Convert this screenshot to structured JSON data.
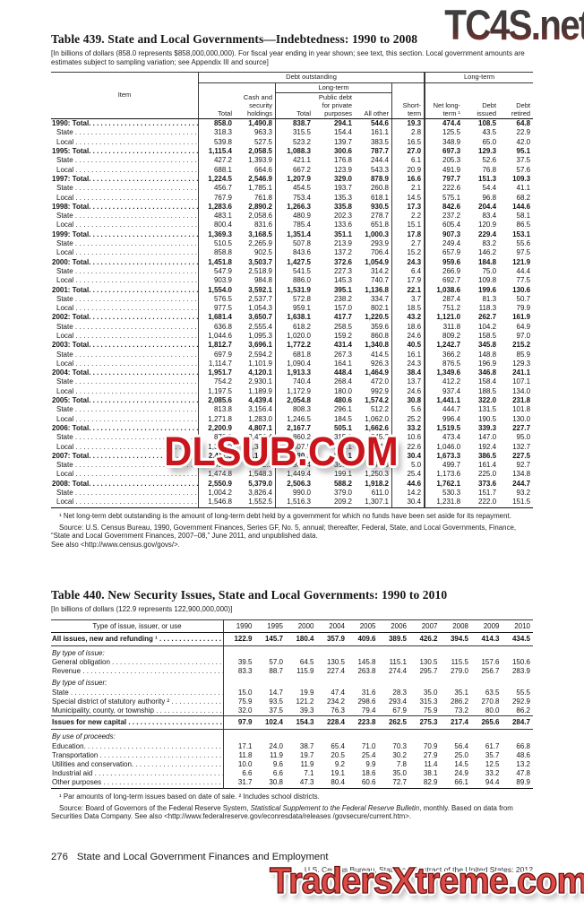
{
  "watermarks": {
    "top": "TC4S.net",
    "middle": "DLSUB.COM",
    "bottom": "TradersXtreme.com",
    "colors": {
      "top_gradient_start": "#3f3f3f",
      "top_gradient_end": "#8a2e26",
      "middle_red": "#c9151b",
      "bottom_red": "#dd4a45"
    }
  },
  "leader_dots": " . . . . . . . . . . . . . . . . . . . . . . . . . . . . . . . . . . . . . . . . . . . . . . . . . .",
  "table439": {
    "title": "Table 439. State and Local Governments—Indebtedness: 1990 to 2008",
    "note": "[In billions of dollars (858.0 represents $858,000,000,000). For fiscal year ending in year shown; see text, this section. Local government amounts are estimates subject to sampling variation; see Appendix III and source]",
    "header": {
      "item": "Item",
      "group_debt": "Debt outstanding",
      "group_long": "Long-term",
      "total": "Total",
      "cash": "Cash and security holdings",
      "longterm_span": "Long-term",
      "lt_total": "Total",
      "lt_public": "Public debt for private purposes",
      "lt_other": "All other",
      "short": "Short-term",
      "net": "Net long-term ¹",
      "issued": "Debt issued",
      "retired": "Debt retired"
    },
    "rows": [
      {
        "label": "1990: Total.",
        "bold": true,
        "values": [
          "858.0",
          "1,490.8",
          "838.7",
          "294.1",
          "544.6",
          "19.3",
          "474.4",
          "108.5",
          "64.8"
        ]
      },
      {
        "label": "State",
        "bold": false,
        "values": [
          "318.3",
          "963.3",
          "315.5",
          "154.4",
          "161.1",
          "2.8",
          "125.5",
          "43.5",
          "22.9"
        ]
      },
      {
        "label": "Local",
        "bold": false,
        "values": [
          "539.8",
          "527.5",
          "523.2",
          "139.7",
          "383.5",
          "16.5",
          "348.9",
          "65.0",
          "42.0"
        ]
      },
      {
        "label": "1995: Total.",
        "bold": true,
        "values": [
          "1,115.4",
          "2,058.5",
          "1,088.3",
          "300.6",
          "787.7",
          "27.0",
          "697.3",
          "129.3",
          "95.1"
        ]
      },
      {
        "label": "State",
        "bold": false,
        "values": [
          "427.2",
          "1,393.9",
          "421.1",
          "176.8",
          "244.4",
          "6.1",
          "205.3",
          "52.6",
          "37.5"
        ]
      },
      {
        "label": "Local",
        "bold": false,
        "values": [
          "688.1",
          "664.6",
          "667.2",
          "123.9",
          "543.3",
          "20.9",
          "491.9",
          "76.8",
          "57.6"
        ]
      },
      {
        "label": "1997: Total.",
        "bold": true,
        "values": [
          "1,224.5",
          "2,546.9",
          "1,207.9",
          "329.0",
          "878.9",
          "16.6",
          "797.7",
          "151.3",
          "109.3"
        ]
      },
      {
        "label": "State",
        "bold": false,
        "values": [
          "456.7",
          "1,785.1",
          "454.5",
          "193.7",
          "260.8",
          "2.1",
          "222.6",
          "54.4",
          "41.1"
        ]
      },
      {
        "label": "Local",
        "bold": false,
        "values": [
          "767.9",
          "761.8",
          "753.4",
          "135.3",
          "618.1",
          "14.5",
          "575.1",
          "96.8",
          "68.2"
        ]
      },
      {
        "label": "1998: Total.",
        "bold": true,
        "values": [
          "1,283.6",
          "2,890.2",
          "1,266.3",
          "335.8",
          "930.5",
          "17.3",
          "842.6",
          "204.4",
          "144.6"
        ]
      },
      {
        "label": "State",
        "bold": false,
        "values": [
          "483.1",
          "2,058.6",
          "480.9",
          "202.3",
          "278.7",
          "2.2",
          "237.2",
          "83.4",
          "58.1"
        ]
      },
      {
        "label": "Local",
        "bold": false,
        "values": [
          "800.4",
          "831.6",
          "785.4",
          "133.6",
          "651.8",
          "15.1",
          "605.4",
          "120.9",
          "86.5"
        ]
      },
      {
        "label": "1999: Total.",
        "bold": true,
        "values": [
          "1,369.3",
          "3,168.5",
          "1,351.4",
          "351.1",
          "1,000.3",
          "17.8",
          "907.3",
          "229.4",
          "153.1"
        ]
      },
      {
        "label": "State",
        "bold": false,
        "values": [
          "510.5",
          "2,265.9",
          "507.8",
          "213.9",
          "293.9",
          "2.7",
          "249.4",
          "83.2",
          "55.6"
        ]
      },
      {
        "label": "Local",
        "bold": false,
        "values": [
          "858.8",
          "902.5",
          "843.6",
          "137.2",
          "706.4",
          "15.2",
          "657.9",
          "146.2",
          "97.5"
        ]
      },
      {
        "label": "2000: Total.",
        "bold": true,
        "values": [
          "1,451.8",
          "3,503.7",
          "1,427.5",
          "372.6",
          "1,054.9",
          "24.3",
          "959.6",
          "184.8",
          "121.9"
        ]
      },
      {
        "label": "State",
        "bold": false,
        "values": [
          "547.9",
          "2,518.9",
          "541.5",
          "227.3",
          "314.2",
          "6.4",
          "266.9",
          "75.0",
          "44.4"
        ]
      },
      {
        "label": "Local",
        "bold": false,
        "values": [
          "903.9",
          "984.8",
          "886.0",
          "145.3",
          "740.7",
          "17.9",
          "692.7",
          "109.8",
          "77.5"
        ]
      },
      {
        "label": "2001: Total.",
        "bold": true,
        "values": [
          "1,554.0",
          "3,592.1",
          "1,531.9",
          "395.1",
          "1,136.8",
          "22.1",
          "1,038.6",
          "199.6",
          "130.6"
        ]
      },
      {
        "label": "State",
        "bold": false,
        "values": [
          "576.5",
          "2,537.7",
          "572.8",
          "238.2",
          "334.7",
          "3.7",
          "287.4",
          "81.3",
          "50.7"
        ]
      },
      {
        "label": "Local",
        "bold": false,
        "values": [
          "977.5",
          "1,054.3",
          "959.1",
          "157.0",
          "802.1",
          "18.5",
          "751.2",
          "118.3",
          "79.9"
        ]
      },
      {
        "label": "2002: Total.",
        "bold": true,
        "values": [
          "1,681.4",
          "3,650.7",
          "1,638.1",
          "417.7",
          "1,220.5",
          "43.2",
          "1,121.0",
          "262.7",
          "161.9"
        ]
      },
      {
        "label": "State",
        "bold": false,
        "values": [
          "636.8",
          "2,555.4",
          "618.2",
          "258.5",
          "359.6",
          "18.6",
          "311.8",
          "104.2",
          "64.9"
        ]
      },
      {
        "label": "Local",
        "bold": false,
        "values": [
          "1,044.6",
          "1,095.3",
          "1,020.0",
          "159.2",
          "860.8",
          "24.6",
          "809.2",
          "158.5",
          "97.0"
        ]
      },
      {
        "label": "2003: Total.",
        "bold": true,
        "values": [
          "1,812.7",
          "3,696.1",
          "1,772.2",
          "431.4",
          "1,340.8",
          "40.5",
          "1,242.7",
          "345.8",
          "215.2"
        ]
      },
      {
        "label": "State",
        "bold": false,
        "values": [
          "697.9",
          "2,594.2",
          "681.8",
          "267.3",
          "414.5",
          "16.1",
          "366.2",
          "148.8",
          "85.9"
        ]
      },
      {
        "label": "Local",
        "bold": false,
        "values": [
          "1,114.7",
          "1,101.9",
          "1,090.4",
          "164.1",
          "926.3",
          "24.3",
          "876.5",
          "196.9",
          "129.3"
        ]
      },
      {
        "label": "2004: Total.",
        "bold": true,
        "values": [
          "1,951.7",
          "4,120.1",
          "1,913.3",
          "448.4",
          "1,464.9",
          "38.4",
          "1,349.6",
          "346.8",
          "241.1"
        ]
      },
      {
        "label": "State",
        "bold": false,
        "values": [
          "754.2",
          "2,930.1",
          "740.4",
          "268.4",
          "472.0",
          "13.7",
          "412.2",
          "158.4",
          "107.1"
        ]
      },
      {
        "label": "Local",
        "bold": false,
        "values": [
          "1,197.5",
          "1,189.9",
          "1,172.9",
          "180.0",
          "992.9",
          "24.6",
          "937.4",
          "188.5",
          "134.0"
        ]
      },
      {
        "label": "2005: Total.",
        "bold": true,
        "values": [
          "2,085.6",
          "4,439.4",
          "2,054.8",
          "480.6",
          "1,574.2",
          "30.8",
          "1,441.1",
          "322.0",
          "231.8"
        ]
      },
      {
        "label": "State",
        "bold": false,
        "values": [
          "813.8",
          "3,156.4",
          "808.3",
          "296.1",
          "512.2",
          "5.6",
          "444.7",
          "131.5",
          "101.8"
        ]
      },
      {
        "label": "Local",
        "bold": false,
        "values": [
          "1,271.8",
          "1,283.0",
          "1,246.5",
          "184.5",
          "1,062.0",
          "25.2",
          "996.4",
          "190.5",
          "130.0"
        ]
      },
      {
        "label": "2006: Total.",
        "bold": true,
        "values": [
          "2,200.9",
          "4,807.1",
          "2,167.7",
          "505.1",
          "1,662.6",
          "33.2",
          "1,519.5",
          "339.3",
          "227.7"
        ]
      },
      {
        "label": "State",
        "bold": false,
        "values": [
          "870.9",
          "3,426.4",
          "860.2",
          "315.0",
          "545.2",
          "10.6",
          "473.4",
          "147.0",
          "95.0"
        ]
      },
      {
        "label": "Local",
        "bold": false,
        "values": [
          "1,330.0",
          "1,380.7",
          "1,307.5",
          "190.1",
          "1,117.4",
          "22.6",
          "1,046.0",
          "192.4",
          "132.7"
        ]
      },
      {
        "label": "2007: Total.",
        "bold": true,
        "values": [
          "2,411.3",
          "5,149.2",
          "2,380.9",
          "558.1",
          "1,822.8",
          "30.4",
          "1,673.3",
          "386.5",
          "227.5"
        ]
      },
      {
        "label": "State",
        "bold": false,
        "values": [
          "936.5",
          "3,622.1",
          "931.4",
          "355.9",
          "575.6",
          "5.0",
          "499.7",
          "161.4",
          "92.7"
        ]
      },
      {
        "label": "Local",
        "bold": false,
        "values": [
          "1,474.8",
          "1,548.3",
          "1,449.4",
          "199.1",
          "1,250.3",
          "25.4",
          "1,173.6",
          "225.0",
          "134.8"
        ]
      },
      {
        "label": "2008: Total.",
        "bold": true,
        "values": [
          "2,550.9",
          "5,379.0",
          "2,506.3",
          "588.2",
          "1,918.2",
          "44.6",
          "1,762.1",
          "373.6",
          "244.7"
        ]
      },
      {
        "label": "State",
        "bold": false,
        "values": [
          "1,004.2",
          "3,826.4",
          "990.0",
          "379.0",
          "611.0",
          "14.2",
          "530.3",
          "151.7",
          "93.2"
        ]
      },
      {
        "label": "Local",
        "bold": false,
        "values": [
          "1,546.8",
          "1,552.5",
          "1,516.3",
          "209.2",
          "1,307.1",
          "30.4",
          "1,231.8",
          "222.0",
          "151.5"
        ]
      }
    ],
    "footnote1": "¹ Net long-term debt outstanding is the amount of long-term debt held by a government for which no funds have been set aside for its repayment.",
    "source": "Source: U.S. Census Bureau, 1990, Government Finances, Series GF, No. 5, annual; thereafter, Federal, State, and Local Governments, Finance, “State and Local Government Finances, 2007–08,” June 2011, and unpublished data.",
    "see_also": "See also <http://www.census.gov/govs/>."
  },
  "table440": {
    "title": "Table 440. New Security Issues, State and Local Governments: 1990 to 2010",
    "note": "[In billions of dollars (122.9 represents 122,900,000,000)]",
    "header": {
      "label": "Type of issue, issuer, or use",
      "years": [
        "1990",
        "1995",
        "2000",
        "2004",
        "2005",
        "2006",
        "2007",
        "2008",
        "2009",
        "2010"
      ]
    },
    "rows": [
      {
        "label": "All issues, new and refunding ¹",
        "bold": true,
        "rule_below": true,
        "values": [
          "122.9",
          "145.7",
          "180.4",
          "357.9",
          "409.6",
          "389.5",
          "426.2",
          "394.5",
          "414.3",
          "434.5"
        ]
      },
      {
        "label": "By type of issue:",
        "group": true
      },
      {
        "label": "General obligation",
        "values": [
          "39.5",
          "57.0",
          "64.5",
          "130.5",
          "145.8",
          "115.1",
          "130.5",
          "115.5",
          "157.6",
          "150.6"
        ]
      },
      {
        "label": "Revenue",
        "values": [
          "83.3",
          "88.7",
          "115.9",
          "227.4",
          "263.8",
          "274.4",
          "295.7",
          "279.0",
          "256.7",
          "283.9"
        ]
      },
      {
        "label": "By type of issuer:",
        "group": true
      },
      {
        "label": "State",
        "values": [
          "15.0",
          "14.7",
          "19.9",
          "47.4",
          "31.6",
          "28.3",
          "35.0",
          "35.1",
          "63.5",
          "55.5"
        ]
      },
      {
        "label": "Special district of statutory authority ²",
        "values": [
          "75.9",
          "93.5",
          "121.2",
          "234.2",
          "298.6",
          "293.4",
          "315.3",
          "286.2",
          "270.8",
          "292.9"
        ]
      },
      {
        "label": "Municipality, county, or township",
        "rule_below": true,
        "values": [
          "32.0",
          "37.5",
          "39.3",
          "76.3",
          "79.4",
          "67.9",
          "75.9",
          "73.2",
          "80.0",
          "86.2"
        ]
      },
      {
        "label": "Issues for new capital",
        "bold": true,
        "rule_below": true,
        "values": [
          "97.9",
          "102.4",
          "154.3",
          "228.4",
          "223.8",
          "262.5",
          "275.3",
          "217.4",
          "265.6",
          "284.7"
        ]
      },
      {
        "label": "By use of proceeds:",
        "group": true
      },
      {
        "label": "Education.",
        "values": [
          "17.1",
          "24.0",
          "38.7",
          "65.4",
          "71.0",
          "70.3",
          "70.9",
          "56.4",
          "61.7",
          "66.8"
        ]
      },
      {
        "label": "Transportation",
        "values": [
          "11.8",
          "11.9",
          "19.7",
          "20.5",
          "25.4",
          "30.2",
          "27.9",
          "25.0",
          "35.7",
          "48.6"
        ]
      },
      {
        "label": "Utilities and conservation.",
        "values": [
          "10.0",
          "9.6",
          "11.9",
          "9.2",
          "9.9",
          "7.8",
          "11.4",
          "14.5",
          "12.5",
          "13.2"
        ]
      },
      {
        "label": "Industrial aid",
        "values": [
          "6.6",
          "6.6",
          "7.1",
          "19.1",
          "18.6",
          "35.0",
          "38.1",
          "24.9",
          "33.2",
          "47.8"
        ]
      },
      {
        "label": "Other purposes",
        "values": [
          "31.7",
          "30.8",
          "47.3",
          "80.4",
          "60.6",
          "72.7",
          "82.9",
          "66.1",
          "94.4",
          "89.9"
        ]
      }
    ],
    "footnote1": "¹ Par amounts of long-term issues based on date of sale. ² Includes school districts.",
    "source_pre": "Source: Board of Governors of the Federal Reserve System, ",
    "source_italic": "Statistical Supplement to the Federal Reserve Bulletin",
    "source_post": ", monthly. Based on data from Securities Data Company. See also <http://www.federalreserve.gov/econresdata/releases /govsecure/current.htm>."
  },
  "footer": {
    "page_number": "276",
    "section_title": "State and Local Government Finances and Employment",
    "attribution": "U.S. Census Bureau, Statistical Abstract of the United States: 2012"
  }
}
